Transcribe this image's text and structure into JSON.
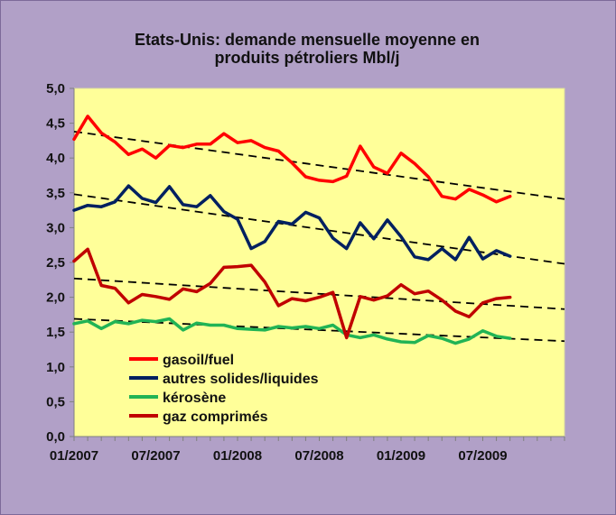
{
  "chart_data": {
    "type": "line",
    "title_line1": "Etats-Unis: demande mensuelle moyenne en",
    "title_line2": "produits pétroliers Mbl/j",
    "xlabel": "",
    "ylabel": "",
    "ylim": [
      0,
      5
    ],
    "grid": false,
    "legend_position": "bottom-left",
    "x_tick_labels": [
      "01/2007",
      "07/2007",
      "01/2008",
      "07/2008",
      "01/2009",
      "07/2009"
    ],
    "y_tick_labels": [
      "0,0",
      "0,5",
      "1,0",
      "1,5",
      "2,0",
      "2,5",
      "3,0",
      "3,5",
      "4,0",
      "4,5",
      "5,0"
    ],
    "x": [
      "2007-01",
      "2007-02",
      "2007-03",
      "2007-04",
      "2007-05",
      "2007-06",
      "2007-07",
      "2007-08",
      "2007-09",
      "2007-10",
      "2007-11",
      "2007-12",
      "2008-01",
      "2008-02",
      "2008-03",
      "2008-04",
      "2008-05",
      "2008-06",
      "2008-07",
      "2008-08",
      "2008-09",
      "2008-10",
      "2008-11",
      "2008-12",
      "2009-01",
      "2009-02",
      "2009-03",
      "2009-04",
      "2009-05",
      "2009-06",
      "2009-07",
      "2009-08",
      "2009-09"
    ],
    "series": [
      {
        "name": "gasoil/fuel",
        "color": "#ff0000",
        "values": [
          4.27,
          4.6,
          4.36,
          4.23,
          4.05,
          4.13,
          4.0,
          4.18,
          4.15,
          4.2,
          4.2,
          4.35,
          4.22,
          4.25,
          4.15,
          4.1,
          3.93,
          3.73,
          3.68,
          3.66,
          3.74,
          4.17,
          3.87,
          3.78,
          4.07,
          3.92,
          3.73,
          3.45,
          3.41,
          3.55,
          3.47,
          3.37,
          3.45
        ]
      },
      {
        "name": "autres solides/liquides",
        "color": "#002060",
        "values": [
          3.25,
          3.32,
          3.3,
          3.37,
          3.6,
          3.42,
          3.36,
          3.59,
          3.33,
          3.3,
          3.46,
          3.23,
          3.12,
          2.7,
          2.8,
          3.09,
          3.05,
          3.22,
          3.14,
          2.85,
          2.7,
          3.07,
          2.84,
          3.11,
          2.87,
          2.58,
          2.54,
          2.7,
          2.54,
          2.86,
          2.55,
          2.67,
          2.59
        ]
      },
      {
        "name": "kérosène",
        "color": "#21b455",
        "values": [
          1.62,
          1.66,
          1.55,
          1.65,
          1.62,
          1.67,
          1.65,
          1.69,
          1.53,
          1.63,
          1.6,
          1.6,
          1.55,
          1.54,
          1.53,
          1.58,
          1.56,
          1.58,
          1.55,
          1.6,
          1.46,
          1.42,
          1.46,
          1.4,
          1.36,
          1.35,
          1.45,
          1.41,
          1.34,
          1.4,
          1.52,
          1.44,
          1.41
        ]
      },
      {
        "name": "gaz comprimés",
        "color": "#c00000",
        "values": [
          2.52,
          2.69,
          2.17,
          2.13,
          1.92,
          2.04,
          2.01,
          1.97,
          2.12,
          2.08,
          2.2,
          2.43,
          2.44,
          2.46,
          2.22,
          1.88,
          1.98,
          1.95,
          2.0,
          2.07,
          1.42,
          2.01,
          1.96,
          2.02,
          2.18,
          2.05,
          2.09,
          1.96,
          1.8,
          1.72,
          1.92,
          1.98,
          2.0
        ]
      }
    ],
    "trendlines": [
      {
        "series": "gasoil/fuel",
        "start": 4.38,
        "end": 3.41,
        "color": "#000000",
        "style": "dashed"
      },
      {
        "series": "autres solides/liquides",
        "start": 3.48,
        "end": 2.48,
        "color": "#000000",
        "style": "dashed"
      },
      {
        "series": "gaz comprimés",
        "start": 2.27,
        "end": 1.83,
        "color": "#000000",
        "style": "dashed"
      },
      {
        "series": "kérosène",
        "start": 1.69,
        "end": 1.37,
        "color": "#000000",
        "style": "dashed"
      }
    ],
    "colors": {
      "frame_background": "#b1a0c7",
      "plot_background": "#ffff99",
      "axis": "#808080"
    }
  }
}
